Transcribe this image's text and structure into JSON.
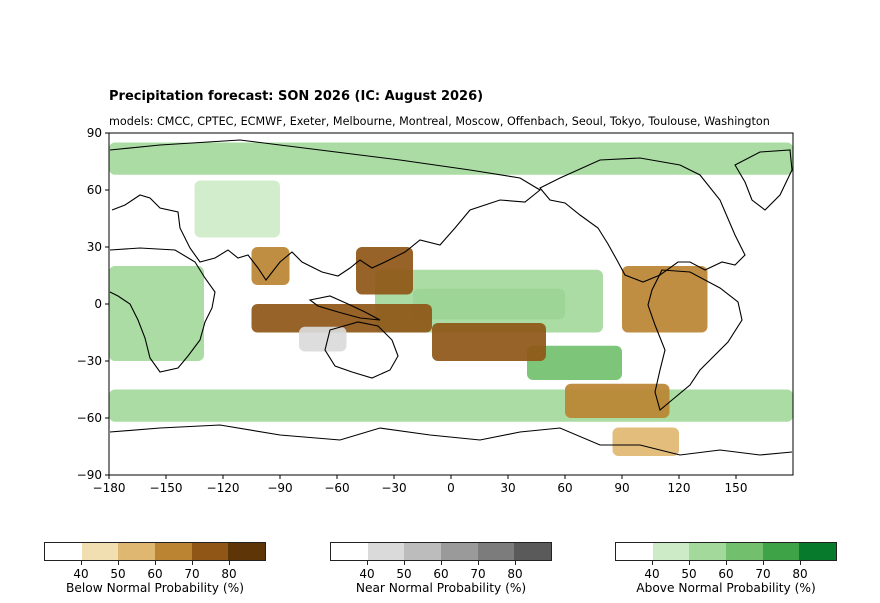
{
  "chart_data": {
    "type": "heatmap",
    "title": "Precipitation forecast: SON 2026 (IC: August 2026)",
    "subtitle": "models: CMCC, CPTEC, ECMWF, Exeter, Melbourne, Montreal, Moscow, Offenbach, Seoul, Tokyo, Toulouse, Washington",
    "x_ticks": [
      "−180",
      "−150",
      "−120",
      "−90",
      "−60",
      "−30",
      "0",
      "30",
      "60",
      "90",
      "120",
      "150"
    ],
    "y_ticks": [
      "90",
      "60",
      "30",
      "0",
      "−30",
      "−60",
      "−90"
    ],
    "xlim": [
      -180,
      180
    ],
    "ylim": [
      -90,
      90
    ],
    "grid": false,
    "regions": [
      {
        "category": "above",
        "level": 70,
        "lon": [
          -20,
          60
        ],
        "lat": [
          -8,
          8
        ]
      },
      {
        "category": "above",
        "level": 50,
        "lon": [
          -40,
          80
        ],
        "lat": [
          -15,
          18
        ]
      },
      {
        "category": "above",
        "level": 60,
        "lon": [
          40,
          90
        ],
        "lat": [
          -40,
          -22
        ]
      },
      {
        "category": "above",
        "level": 50,
        "lon": [
          -180,
          180
        ],
        "lat": [
          -62,
          -45
        ]
      },
      {
        "category": "above",
        "level": 50,
        "lon": [
          -180,
          180
        ],
        "lat": [
          68,
          85
        ]
      },
      {
        "category": "above",
        "level": 50,
        "lon": [
          -180,
          -130
        ],
        "lat": [
          -30,
          20
        ]
      },
      {
        "category": "above",
        "level": 45,
        "lon": [
          -135,
          -90
        ],
        "lat": [
          35,
          65
        ]
      },
      {
        "category": "below",
        "level": 70,
        "lon": [
          -105,
          -10
        ],
        "lat": [
          -15,
          0
        ]
      },
      {
        "category": "below",
        "level": 70,
        "lon": [
          -50,
          -20
        ],
        "lat": [
          5,
          30
        ]
      },
      {
        "category": "below",
        "level": 60,
        "lon": [
          -105,
          -85
        ],
        "lat": [
          10,
          30
        ]
      },
      {
        "category": "below",
        "level": 70,
        "lon": [
          -10,
          50
        ],
        "lat": [
          -30,
          -10
        ]
      },
      {
        "category": "below",
        "level": 60,
        "lon": [
          90,
          135
        ],
        "lat": [
          -15,
          20
        ]
      },
      {
        "category": "below",
        "level": 60,
        "lon": [
          60,
          115
        ],
        "lat": [
          -60,
          -42
        ]
      },
      {
        "category": "below",
        "level": 50,
        "lon": [
          85,
          120
        ],
        "lat": [
          -80,
          -65
        ]
      },
      {
        "category": "near",
        "level": 40,
        "lon": [
          -80,
          -55
        ],
        "lat": [
          -25,
          -12
        ]
      }
    ],
    "colorbars": [
      {
        "label": "Below Normal Probability (%)",
        "ticks": [
          "40",
          "50",
          "60",
          "70",
          "80"
        ],
        "colors": [
          "#ffffff",
          "#f1deb1",
          "#dfb771",
          "#bb8433",
          "#8f5616",
          "#5e3506"
        ]
      },
      {
        "label": "Near Normal Probability (%)",
        "ticks": [
          "40",
          "50",
          "60",
          "70",
          "80"
        ],
        "colors": [
          "#ffffff",
          "#dadada",
          "#bcbcbc",
          "#9a9a9a",
          "#7c7c7c",
          "#5a5a5a"
        ]
      },
      {
        "label": "Above Normal Probability (%)",
        "ticks": [
          "40",
          "50",
          "60",
          "70",
          "80"
        ],
        "colors": [
          "#ffffff",
          "#cdebc7",
          "#a3d99b",
          "#72c06d",
          "#3ea347",
          "#077a2c"
        ]
      }
    ]
  }
}
